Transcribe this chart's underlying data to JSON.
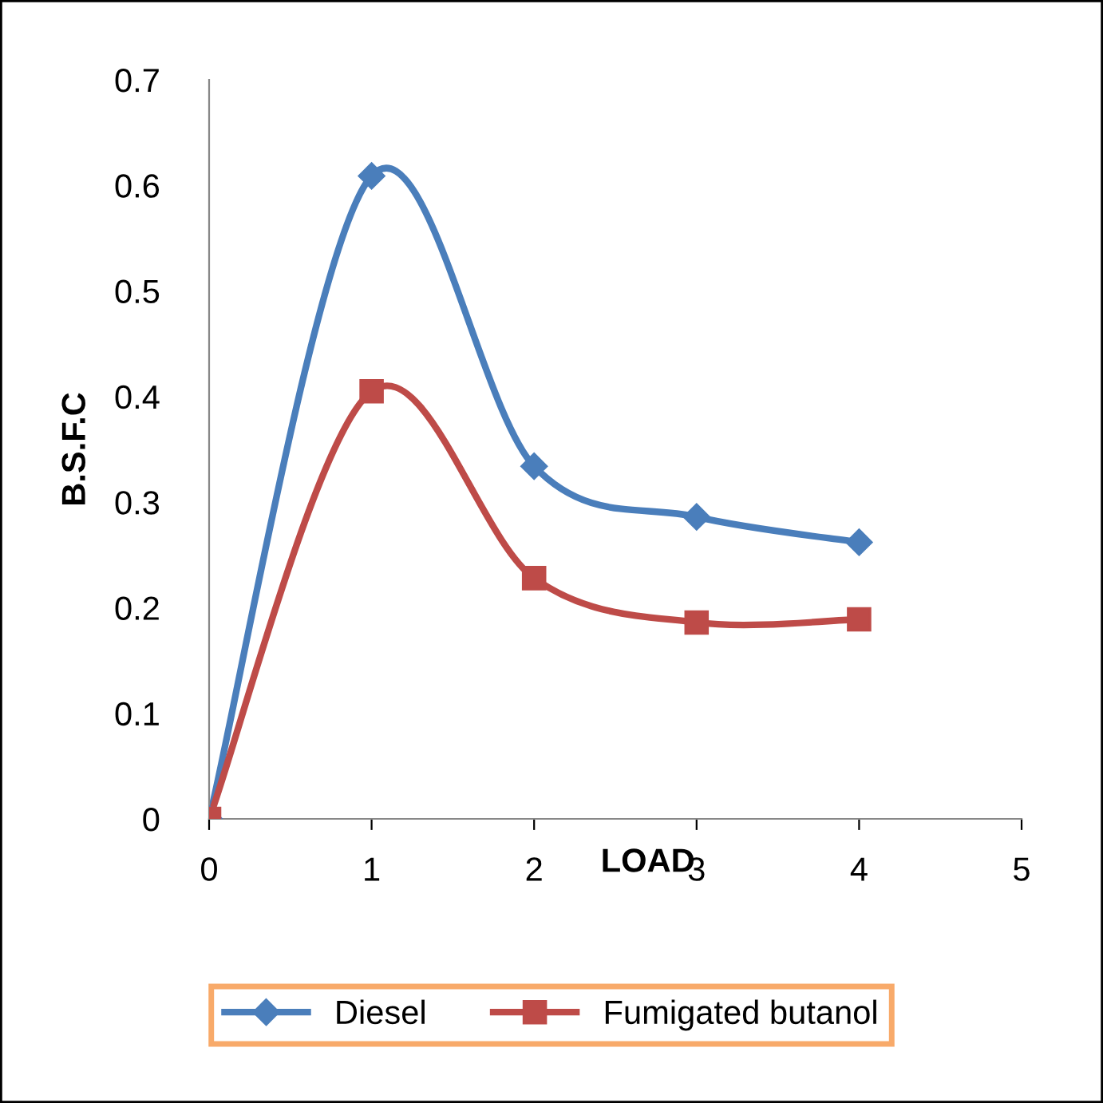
{
  "chart_data": {
    "type": "line",
    "xlabel": "LOAD",
    "ylabel": "B.S.F.C",
    "x": [
      0,
      1,
      2,
      3,
      4
    ],
    "series": [
      {
        "name": "Diesel",
        "color": "#4a7ebb",
        "marker": "diamond",
        "values": [
          0,
          0.609,
          0.334,
          0.286,
          0.262
        ]
      },
      {
        "name": "Fumigated butanol",
        "color": "#be4b48",
        "marker": "square",
        "values": [
          0,
          0.405,
          0.228,
          0.186,
          0.189
        ]
      }
    ],
    "xlim": [
      0,
      5
    ],
    "xticks": [
      0,
      1,
      2,
      3,
      4,
      5
    ],
    "ylim": [
      0,
      0.7
    ],
    "yticks": [
      0,
      0.1,
      0.2,
      0.3,
      0.4,
      0.5,
      0.6,
      0.7
    ],
    "grid": false,
    "legend": "bottom",
    "line_style": "solid"
  }
}
